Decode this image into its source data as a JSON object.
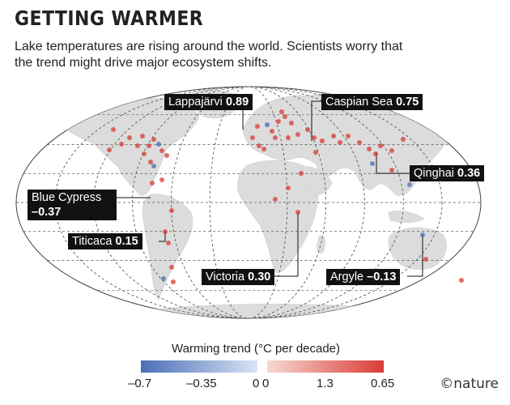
{
  "header": {
    "title": "GETTING WARMER",
    "subtitle": "Lake temperatures are rising around the world. Scientists worry that the trend might drive major ecosystem shifts."
  },
  "callouts": [
    {
      "name": "Lappajärvi",
      "value": "0.89"
    },
    {
      "name": "Caspian Sea",
      "value": "0.75"
    },
    {
      "name": "Qinghai",
      "value": "0.36"
    },
    {
      "name": "Blue Cypress",
      "value": "–0.37"
    },
    {
      "name": "Titicaca",
      "value": "0.15"
    },
    {
      "name": "Victoria",
      "value": "0.30"
    },
    {
      "name": "Argyle",
      "value": "–0.13"
    }
  ],
  "legend": {
    "title": "Warming trend (°C per decade)",
    "ticks_negative": [
      "–0.7",
      "–0.35",
      "0"
    ],
    "ticks_positive": [
      "0",
      "1.3",
      "0.65"
    ],
    "colors": {
      "cool": "#4a6fb8",
      "cool_light": "#d9e3f3",
      "warm_light": "#f7d9d2",
      "warm": "#d83c34"
    }
  },
  "credit": "©nature",
  "colors": {
    "land": "#dcdcdc",
    "ocean": "#ffffff",
    "graticule": "#555555"
  }
}
